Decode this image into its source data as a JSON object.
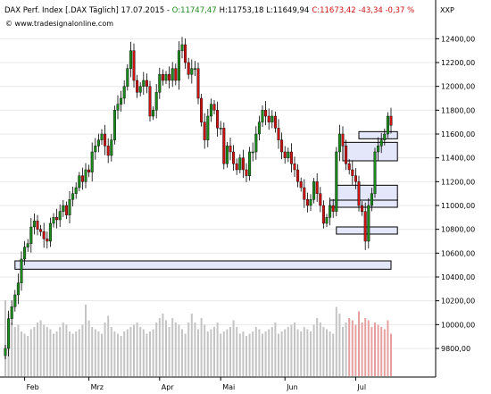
{
  "header": {
    "title_prefix": "DAX Perf. Index [.DAX  Täglich] 17.07.2015 - ",
    "open": "O:11747,47",
    "high_low": "H:11753,18 L:11649,94",
    "close": "C:11673,42 -43,34 -0,37 %",
    "source": "© www.tradesignalonline.com",
    "xxp": "XXP"
  },
  "colors": {
    "up": "#1a8a1a",
    "down": "#cc1111",
    "candle_stroke": "#000000",
    "volume": "#c4c4c4",
    "volume_recent": "#e6a0a0",
    "zone_fill": "#e4e6fa",
    "zone_stroke": "#000000",
    "grid": "#e8e8e8",
    "axis": "#000000"
  },
  "chart_data": {
    "type": "candlestick",
    "symbol": "DAX Perf. Index",
    "timeframe": "Täglich",
    "ylim": [
      9620,
      12560
    ],
    "yticks": [
      9800,
      10000,
      10200,
      10400,
      10600,
      10800,
      11000,
      11200,
      11400,
      11600,
      11800,
      12000,
      12200,
      12400
    ],
    "ytick_labels": [
      "9800,00",
      "10000,00",
      "10200,00",
      "10400,00",
      "10600,00",
      "10800,00",
      "11000,00",
      "11200,00",
      "11400,00",
      "11600,00",
      "11800,00",
      "12000,00",
      "12200,00",
      "12400,00"
    ],
    "month_labels": [
      {
        "label": "Feb",
        "index": 6
      },
      {
        "label": "Mrz",
        "index": 26
      },
      {
        "label": "Apr",
        "index": 48
      },
      {
        "label": "Mai",
        "index": 67
      },
      {
        "label": "Jun",
        "index": 87
      },
      {
        "label": "Jul",
        "index": 109
      }
    ],
    "closes": [
      9800,
      10050,
      10150,
      10250,
      10350,
      10550,
      10650,
      10680,
      10820,
      10870,
      10800,
      10780,
      10720,
      10700,
      10850,
      10900,
      10880,
      10950,
      11000,
      10920,
      11050,
      11100,
      11150,
      11250,
      11200,
      11300,
      11280,
      11450,
      11500,
      11550,
      11600,
      11500,
      11420,
      11550,
      11800,
      11850,
      11900,
      12000,
      12150,
      12300,
      12050,
      11950,
      12000,
      12050,
      12000,
      11750,
      11800,
      11950,
      12100,
      12050,
      12100,
      12050,
      12150,
      12050,
      12300,
      12350,
      12200,
      12100,
      12150,
      12150,
      11900,
      11700,
      11550,
      11750,
      11850,
      11800,
      11650,
      11650,
      11350,
      11500,
      11450,
      11350,
      11300,
      11400,
      11300,
      11250,
      11450,
      11450,
      11600,
      11700,
      11800,
      11750,
      11700,
      11750,
      11650,
      11550,
      11450,
      11400,
      11450,
      11350,
      11300,
      11200,
      11150,
      11050,
      11000,
      11050,
      11200,
      11100,
      11000,
      10850,
      10900,
      11000,
      10950,
      11450,
      11600,
      11500,
      11350,
      11300,
      11250,
      11200,
      11000,
      10950,
      10700,
      11000,
      11100,
      11450,
      11500,
      11550,
      11600,
      11750,
      11673.42
    ],
    "volume": [
      170,
      140,
      120,
      110,
      115,
      100,
      95,
      90,
      105,
      110,
      120,
      125,
      115,
      110,
      105,
      95,
      100,
      110,
      120,
      115,
      100,
      95,
      100,
      105,
      115,
      160,
      125,
      110,
      105,
      100,
      95,
      120,
      135,
      110,
      100,
      95,
      90,
      100,
      105,
      110,
      115,
      120,
      110,
      105,
      95,
      100,
      105,
      120,
      130,
      140,
      125,
      110,
      130,
      120,
      115,
      105,
      95,
      120,
      140,
      120,
      105,
      130,
      115,
      100,
      105,
      110,
      120,
      95,
      100,
      105,
      110,
      125,
      110,
      95,
      100,
      90,
      95,
      100,
      110,
      105,
      95,
      100,
      105,
      110,
      120,
      95,
      100,
      105,
      110,
      115,
      120,
      105,
      100,
      110,
      105,
      100,
      115,
      130,
      120,
      110,
      105,
      100,
      95,
      155,
      140,
      110,
      120,
      130,
      125,
      115,
      145,
      120,
      130,
      125,
      110,
      120,
      115,
      110,
      105,
      125,
      95
    ],
    "volume_max": 170,
    "zones": [
      {
        "low": 10465,
        "high": 10535,
        "start_index": 3,
        "end_index": 120
      },
      {
        "low": 10760,
        "high": 10820,
        "start_index": 103,
        "end_index": 122
      },
      {
        "low": 10985,
        "high": 11045,
        "start_index": 101,
        "end_index": 122
      },
      {
        "low": 11045,
        "high": 11170,
        "start_index": 103,
        "end_index": 122
      },
      {
        "low": 11375,
        "high": 11530,
        "start_index": 105,
        "end_index": 122
      },
      {
        "low": 11560,
        "high": 11620,
        "start_index": 110,
        "end_index": 122
      }
    ]
  }
}
